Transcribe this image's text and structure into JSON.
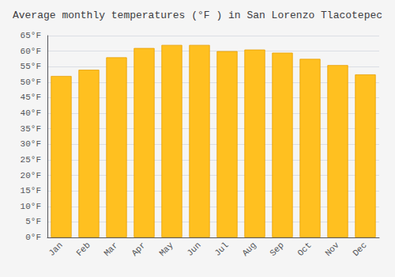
{
  "chart_data": {
    "type": "bar",
    "title": "Average monthly temperatures (°F ) in San Lorenzo Tlacotepec",
    "categories": [
      "Jan",
      "Feb",
      "Mar",
      "Apr",
      "May",
      "Jun",
      "Jul",
      "Aug",
      "Sep",
      "Oct",
      "Nov",
      "Dec"
    ],
    "values": [
      52,
      54,
      58,
      61,
      62,
      62,
      60,
      60.5,
      59.5,
      57.5,
      55.5,
      52.5
    ],
    "color": "#FFC020",
    "ylim": [
      0,
      65
    ],
    "yticks": [
      {
        "value": 0,
        "label": "0°F"
      },
      {
        "value": 5,
        "label": "5°F"
      },
      {
        "value": 10,
        "label": "10°F"
      },
      {
        "value": 15,
        "label": "15°F"
      },
      {
        "value": 20,
        "label": "20°F"
      },
      {
        "value": 25,
        "label": "25°F"
      },
      {
        "value": 30,
        "label": "30°F"
      },
      {
        "value": 35,
        "label": "35°F"
      },
      {
        "value": 40,
        "label": "40°F"
      },
      {
        "value": 45,
        "label": "45°F"
      },
      {
        "value": 50,
        "label": "50°F"
      },
      {
        "value": 55,
        "label": "55°F"
      },
      {
        "value": 60,
        "label": "60°F"
      },
      {
        "value": 65,
        "label": "65°F"
      }
    ],
    "grid": true
  }
}
